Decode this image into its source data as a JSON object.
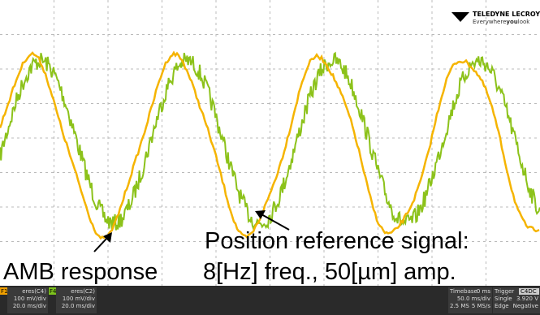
{
  "logo": {
    "brand": "TELEDYNE LECROY",
    "tagline_pre": "Everywhere",
    "tagline_bold": "you",
    "tagline_post": "look"
  },
  "annotations": {
    "signal_line1": "Position reference signal:",
    "signal_line2": "8[Hz] freq., 50[µm] amp.",
    "response": "AMB response"
  },
  "status_bar": {
    "channels": [
      {
        "id": "F1",
        "source": "eres(C4)",
        "vdiv": "100 mV/div",
        "tdiv": "20.0 ms/div"
      },
      {
        "id": "F4",
        "source": "eres(C2)",
        "vdiv": "100 mV/div",
        "tdiv": "20.0 ms/div"
      }
    ],
    "timebase": {
      "label": "Timebase",
      "delay": "0 ms",
      "tdiv": "50.0 ms/div",
      "samples": "2.5 MS",
      "rate": "5 MS/s"
    },
    "trigger": {
      "label": "Trigger",
      "source": "C4DC",
      "mode": "Single",
      "level": "3.920 V",
      "type": "Edge",
      "slope": "Negative"
    }
  }
}
